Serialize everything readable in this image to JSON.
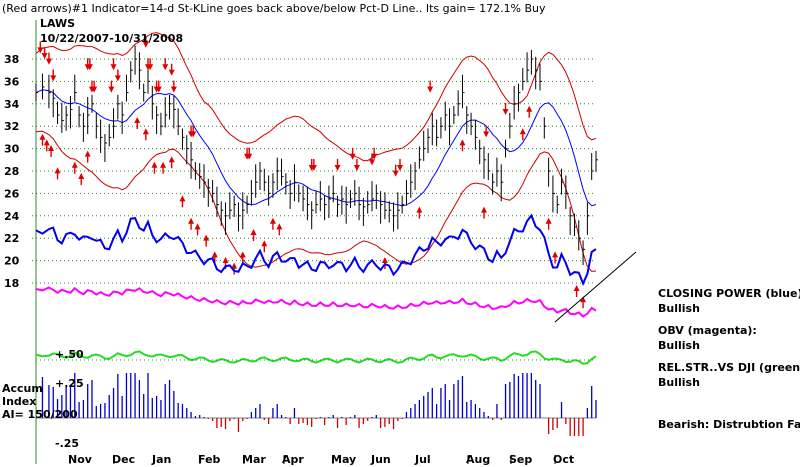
{
  "chart_data": {
    "type": "line",
    "title": "(Red arrows)#1 Indicator=14-d St-KLine goes back above/below Pct-D Line.. Its gain= 172.1% Buy",
    "ticker": "LAWS",
    "date_range": "10/22/2007-10/31/2008",
    "price_axis": {
      "range": [
        16,
        39
      ],
      "ticks": [
        38,
        36,
        34,
        32,
        30,
        28,
        26,
        24,
        22,
        20,
        18
      ],
      "grid": "dotted-green"
    },
    "months": [
      "Nov",
      "Dec",
      "Jan",
      "Feb",
      "Mar",
      "Apr",
      "May",
      "Jun",
      "Jul",
      "Aug",
      "Sep",
      "Oct"
    ],
    "series": [
      {
        "name": "price",
        "color": "#000000",
        "x": [
          0,
          3,
          6,
          8,
          10,
          12,
          14,
          16,
          18,
          20,
          22,
          24,
          26,
          28,
          30,
          32,
          34,
          36,
          38,
          40,
          42,
          44,
          46,
          48,
          50,
          52,
          54,
          56,
          58,
          60,
          62,
          64,
          66,
          68,
          70,
          72,
          74,
          76,
          78,
          80,
          82,
          84,
          86,
          88,
          90,
          92,
          94,
          96,
          98,
          100,
          102,
          104,
          106,
          108,
          110,
          112,
          114,
          116,
          118,
          120,
          122,
          124,
          126,
          128,
          130,
          132,
          134,
          136,
          138,
          140,
          142,
          144,
          146,
          148,
          150,
          152,
          154,
          156,
          158,
          160,
          162,
          164,
          166,
          168,
          170,
          172,
          174,
          176,
          178,
          180,
          182,
          184,
          186,
          188,
          190,
          192,
          194,
          196,
          198,
          200,
          202,
          204,
          206,
          208,
          210,
          212,
          214,
          216,
          218,
          220,
          222,
          224,
          226,
          228,
          230,
          232,
          234,
          236,
          238,
          240,
          242,
          244,
          246,
          248,
          250,
          252,
          254,
          256,
          258,
          260
        ],
        "y": [
          35,
          35.5,
          35,
          34.5,
          33,
          32.5,
          33,
          33.5,
          35,
          33,
          32,
          33,
          34,
          32,
          31,
          30.5,
          31,
          32,
          34,
          33,
          35,
          37,
          38,
          37,
          35,
          36,
          34,
          33,
          32,
          33,
          34,
          33.5,
          32,
          31,
          30,
          29,
          28,
          27.5,
          27,
          26.5,
          26,
          25,
          24.5,
          24,
          24.5,
          25,
          24,
          24.5,
          25,
          26,
          27,
          28,
          27,
          26,
          27,
          28,
          27.5,
          27,
          26,
          27,
          26,
          25.5,
          25,
          24.5,
          25,
          25.5,
          25,
          25.5,
          26,
          25,
          25.5,
          25,
          25.5,
          26,
          25,
          24.8,
          25,
          25.5,
          26,
          25,
          24.5,
          24.5,
          24,
          24.5,
          25,
          26,
          27,
          28,
          29,
          30,
          31,
          32,
          31,
          32,
          33,
          32,
          33,
          34,
          35,
          33,
          32,
          31,
          30,
          29,
          28,
          27,
          28,
          27,
          30,
          32,
          34,
          35,
          36,
          37,
          38,
          37,
          36,
          32,
          28,
          26,
          25,
          27,
          26,
          24,
          23,
          22,
          21,
          24,
          28,
          29
        ]
      },
      {
        "name": "21-day MA",
        "color": "#0000ff"
      },
      {
        "name": "upper band",
        "color": "#cc0000"
      },
      {
        "name": "lower band",
        "color": "#cc0000"
      },
      {
        "name": "CLOSING POWER (blue)",
        "color": "#0000ff"
      },
      {
        "name": "OBV (magenta)",
        "color": "#ff00ff"
      },
      {
        "name": "REL.STR..VS DJI (green)",
        "color": "#00cc00"
      }
    ],
    "arrows_down": [
      2,
      4,
      6,
      8,
      24,
      25,
      26,
      27,
      35,
      36,
      38,
      51,
      52,
      53,
      56,
      57,
      60,
      63,
      64,
      72,
      73,
      98,
      99,
      128,
      129,
      140,
      147,
      149,
      156,
      157,
      167,
      169,
      183,
      209,
      218
    ],
    "arrows_up": [
      3,
      5,
      7,
      10,
      18,
      21,
      24,
      47,
      51,
      55,
      59,
      63,
      68,
      72,
      75,
      79,
      83,
      88,
      92,
      96,
      101,
      106,
      110,
      113,
      162,
      178,
      198,
      208,
      226,
      229,
      238,
      241,
      251,
      254
    ],
    "accum_index": {
      "label_line1": "Accum",
      "label_line2": "Index",
      "ai": "AI= 150/200",
      "ticks": [
        "+.25",
        "-.25"
      ],
      "rs_tick": "+.50"
    },
    "annotations": {
      "closing_power_label": "CLOSING POWER (blue):",
      "closing_power_value": "Bullish",
      "obv_label": "OBV (magenta):",
      "obv_value": "Bullish",
      "rs_label": "REL.STR..VS DJI (green):",
      "rs_value": "Bullish",
      "accum_comment": "Bearish: Distrubtion Falling."
    }
  }
}
